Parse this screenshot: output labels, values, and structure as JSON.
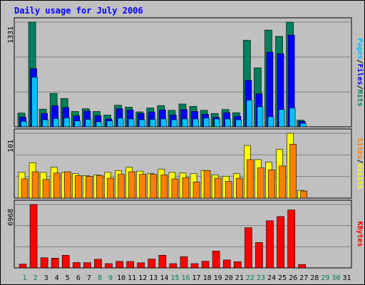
{
  "chart_data": {
    "type": "bar",
    "title": "Daily usage for July 2006",
    "categories": [
      "1",
      "2",
      "3",
      "4",
      "5",
      "6",
      "7",
      "8",
      "9",
      "10",
      "11",
      "12",
      "13",
      "14",
      "15",
      "16",
      "17",
      "18",
      "19",
      "20",
      "21",
      "22",
      "23",
      "24",
      "25",
      "26",
      "27",
      "28",
      "29",
      "30",
      "31"
    ],
    "weekend_days": [
      "1",
      "2",
      "8",
      "9",
      "15",
      "16",
      "22",
      "23",
      "29",
      "30"
    ],
    "colors": {
      "hits": "#00805c",
      "files": "#0000ff",
      "pages": "#00c0ff",
      "visits": "#ffff00",
      "sites": "#ff8000",
      "kbytes": "#ff0000",
      "weekday_label": "#000000",
      "weekend_label": "#00805c",
      "panel_bg": "#c0c0c0"
    },
    "panels": [
      {
        "id": "hits-files-pages",
        "ymax_label": "1331",
        "ymax": 1331,
        "legend": [
          {
            "text": "Pages",
            "color": "#00c0ff"
          },
          {
            "text": "Files",
            "color": "#0000ff"
          },
          {
            "text": "Hits",
            "color": "#00805c"
          }
        ],
        "series": [
          {
            "name": "Hits",
            "color": "#00805c",
            "values": [
              175,
              1331,
              225,
              425,
              360,
              195,
              230,
              195,
              150,
              275,
              250,
              190,
              240,
              270,
              210,
              290,
              260,
              210,
              170,
              220,
              180,
              1100,
              750,
              1230,
              1150,
              1330,
              85,
              0,
              0,
              0,
              0
            ]
          },
          {
            "name": "Files",
            "color": "#0000ff",
            "values": [
              125,
              740,
              170,
              270,
              245,
              140,
              200,
              140,
              100,
              230,
              215,
              170,
              190,
              215,
              150,
              220,
              195,
              160,
              120,
              180,
              135,
              590,
              420,
              950,
              930,
              1165,
              70,
              0,
              0,
              0,
              0
            ]
          },
          {
            "name": "Pages",
            "color": "#00c0ff",
            "values": [
              70,
              630,
              90,
              105,
              115,
              75,
              95,
              65,
              75,
              110,
              100,
              90,
              95,
              100,
              90,
              100,
              100,
              110,
              100,
              100,
              90,
              340,
              255,
              130,
              220,
              240,
              45,
              0,
              0,
              0,
              0
            ]
          }
        ]
      },
      {
        "id": "visits-sites",
        "ymax_label": "101",
        "ymax": 101,
        "legend": [
          {
            "text": "Sites",
            "color": "#ff8000"
          },
          {
            "text": "Visits",
            "color": "#ffff00"
          }
        ],
        "series": [
          {
            "name": "Visits",
            "color": "#ffff00",
            "values": [
              40,
              55,
              40,
              48,
              40,
              38,
              35,
              36,
              40,
              43,
              48,
              42,
              38,
              45,
              40,
              39,
              38,
              43,
              36,
              34,
              38,
              82,
              60,
              56,
              76,
              101,
              12,
              0,
              0,
              0,
              0
            ]
          },
          {
            "name": "Sites",
            "color": "#ff8000",
            "values": [
              30,
              41,
              29,
              39,
              41,
              35,
              34,
              35,
              31,
              37,
              41,
              37,
              37,
              36,
              30,
              32,
              25,
              43,
              31,
              26,
              31,
              60,
              47,
              44,
              50,
              84,
              11,
              0,
              0,
              0,
              0
            ]
          }
        ]
      },
      {
        "id": "kbytes",
        "ymax_label": "6968",
        "ymax": 6968,
        "legend": [
          {
            "text": "KBytes",
            "color": "#ff0000"
          }
        ],
        "series": [
          {
            "name": "KBytes",
            "color": "#ff0000",
            "values": [
              420,
              6968,
              1120,
              1070,
              1390,
              590,
              570,
              950,
              470,
              720,
              710,
              560,
              970,
              1390,
              470,
              1230,
              470,
              730,
              1860,
              870,
              680,
              4420,
              2790,
              5180,
              5650,
              6360,
              380,
              0,
              0,
              0,
              0
            ]
          }
        ]
      }
    ]
  }
}
